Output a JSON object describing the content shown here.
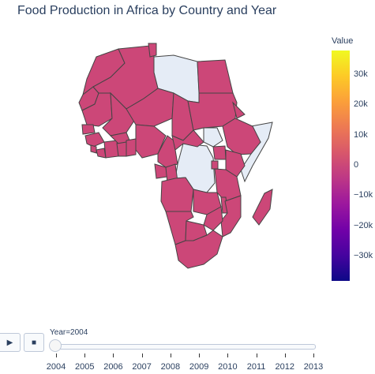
{
  "title": "Food Production in Africa by Country and Year",
  "colorbar": {
    "title": "Value",
    "ticks": [
      {
        "label": "30k",
        "value": 30000
      },
      {
        "label": "20k",
        "value": 20000
      },
      {
        "label": "10k",
        "value": 10000
      },
      {
        "label": "0",
        "value": 0
      },
      {
        "label": "−10k",
        "value": -10000
      },
      {
        "label": "−20k",
        "value": -20000
      },
      {
        "label": "−30k",
        "value": -30000
      }
    ],
    "range": [
      -38000,
      38000
    ],
    "colorscale": [
      "#0d0887",
      "#46039f",
      "#7201a8",
      "#9c179e",
      "#bd3786",
      "#d8576b",
      "#ed7953",
      "#fb9f3a",
      "#fdca26",
      "#f0f921"
    ]
  },
  "map": {
    "scope": "africa",
    "data_color": "#cc4778",
    "no_data_color": "#e5ecf6",
    "border_color": "#444444"
  },
  "slider": {
    "current_prefix": "Year=",
    "current_value": "2004",
    "years": [
      "2004",
      "2005",
      "2006",
      "2007",
      "2008",
      "2009",
      "2010",
      "2011",
      "2012",
      "2013"
    ]
  },
  "controls": {
    "play_icon": "play-icon",
    "stop_icon": "stop-icon"
  }
}
